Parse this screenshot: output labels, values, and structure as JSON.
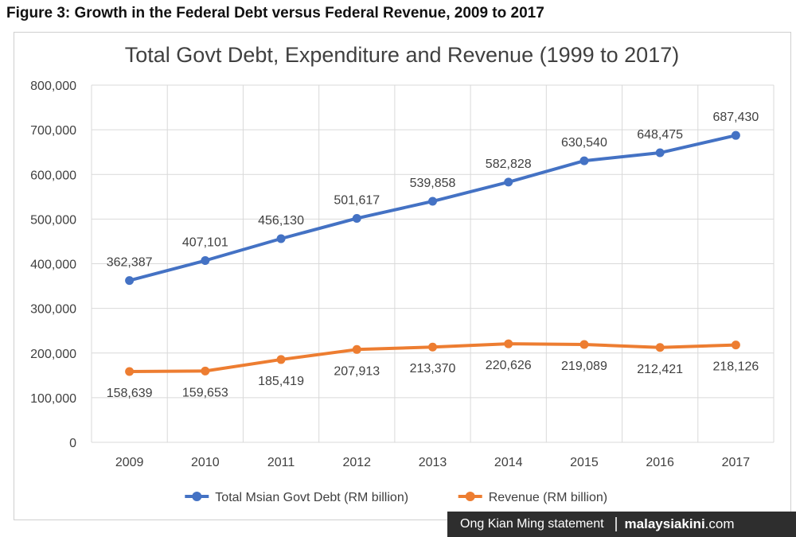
{
  "figure_caption": "Figure 3: Growth in the Federal Debt versus Federal Revenue, 2009 to 2017",
  "credit": {
    "statement": "Ong Kian Ming statement",
    "site_bold": "malaysiakini",
    "site_tail": ".com"
  },
  "colors": {
    "debt": "#4472c4",
    "revenue": "#ed7d31",
    "grid": "#d9d9d9",
    "text": "#404040",
    "credit_bg": "#2e2e2e"
  },
  "chart_data": {
    "type": "line",
    "title": "Total Govt Debt, Expenditure and Revenue (1999 to 2017)",
    "xlabel": "",
    "ylabel": "",
    "categories": [
      "2009",
      "2010",
      "2011",
      "2012",
      "2013",
      "2014",
      "2015",
      "2016",
      "2017"
    ],
    "ylim": [
      0,
      800000
    ],
    "yticks": [
      0,
      100000,
      200000,
      300000,
      400000,
      500000,
      600000,
      700000,
      800000
    ],
    "ytick_labels": [
      "0",
      "100,000",
      "200,000",
      "300,000",
      "400,000",
      "500,000",
      "600,000",
      "700,000",
      "800,000"
    ],
    "grid": true,
    "legend_position": "bottom",
    "series": [
      {
        "name": "Total Msian Govt Debt (RM billion)",
        "color": "#4472c4",
        "values": [
          362387,
          407101,
          456130,
          501617,
          539858,
          582828,
          630540,
          648475,
          687430
        ],
        "labels": [
          "362,387",
          "407,101",
          "456,130",
          "501,617",
          "539,858",
          "582,828",
          "630,540",
          "648,475",
          "687,430"
        ],
        "label_position": "above"
      },
      {
        "name": "Revenue (RM billion)",
        "color": "#ed7d31",
        "values": [
          158639,
          159653,
          185419,
          207913,
          213370,
          220626,
          219089,
          212421,
          218126
        ],
        "labels": [
          "158,639",
          "159,653",
          "185,419",
          "207,913",
          "213,370",
          "220,626",
          "219,089",
          "212,421",
          "218,126"
        ],
        "label_position": "below"
      }
    ]
  }
}
